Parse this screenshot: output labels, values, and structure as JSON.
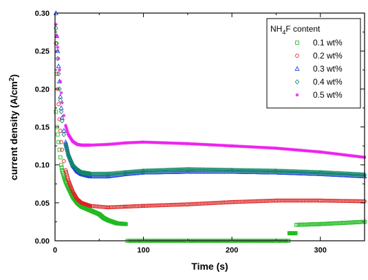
{
  "chart_data": {
    "type": "scatter",
    "title": "",
    "xlabel": "Time (s)",
    "ylabel_main": "current density (A/cm",
    "ylabel_sup": "2",
    "ylabel_close": ")",
    "xlim": [
      0,
      350
    ],
    "ylim": [
      0,
      0.3
    ],
    "x_ticks": [
      0,
      100,
      200,
      300
    ],
    "y_ticks": [
      0.0,
      0.05,
      0.1,
      0.15,
      0.2,
      0.25,
      0.3
    ],
    "y_tick_labels": [
      "0.00",
      "0.05",
      "0.10",
      "0.15",
      "0.20",
      "0.25",
      "0.30"
    ],
    "x_tick_labels": [
      "0",
      "100",
      "200",
      "300"
    ],
    "grid": false,
    "legend": {
      "position": "top-right",
      "title_prefix": "NH",
      "title_sub": "4",
      "title_suffix": "F content"
    },
    "series": [
      {
        "name": "0.1 wt%",
        "color": "#22bb22",
        "marker": "square",
        "points": [
          [
            1,
            0.17
          ],
          [
            2,
            0.15
          ],
          [
            3,
            0.14
          ],
          [
            4,
            0.13
          ],
          [
            5,
            0.12
          ],
          [
            6,
            0.11
          ],
          [
            7,
            0.1
          ],
          [
            8,
            0.093
          ],
          [
            10,
            0.085
          ],
          [
            12,
            0.078
          ],
          [
            15,
            0.07
          ],
          [
            20,
            0.058
          ],
          [
            25,
            0.05
          ],
          [
            30,
            0.045
          ],
          [
            40,
            0.04
          ],
          [
            50,
            0.035
          ],
          [
            55,
            0.03
          ],
          [
            60,
            0.027
          ],
          [
            70,
            0.023
          ],
          [
            80,
            0.022
          ],
          [
            82,
            0.0
          ],
          [
            100,
            0.0
          ],
          [
            150,
            0.0
          ],
          [
            200,
            0.0
          ],
          [
            250,
            0.0
          ],
          [
            264,
            0.0
          ],
          [
            265,
            0.01
          ],
          [
            272,
            0.01
          ],
          [
            273,
            0.021
          ],
          [
            300,
            0.022
          ],
          [
            350,
            0.025
          ]
        ]
      },
      {
        "name": "0.2 wt%",
        "color": "#dd2222",
        "marker": "circle",
        "points": [
          [
            1,
            0.26
          ],
          [
            2,
            0.22
          ],
          [
            3,
            0.2
          ],
          [
            4,
            0.18
          ],
          [
            5,
            0.16
          ],
          [
            6,
            0.145
          ],
          [
            7,
            0.13
          ],
          [
            8,
            0.12
          ],
          [
            10,
            0.105
          ],
          [
            12,
            0.093
          ],
          [
            15,
            0.08
          ],
          [
            20,
            0.065
          ],
          [
            25,
            0.055
          ],
          [
            30,
            0.05
          ],
          [
            40,
            0.046
          ],
          [
            60,
            0.044
          ],
          [
            80,
            0.045
          ],
          [
            100,
            0.046
          ],
          [
            150,
            0.048
          ],
          [
            200,
            0.051
          ],
          [
            250,
            0.053
          ],
          [
            300,
            0.053
          ],
          [
            350,
            0.052
          ]
        ]
      },
      {
        "name": "0.3 wt%",
        "color": "#2244dd",
        "marker": "triangle",
        "points": [
          [
            1,
            0.3
          ],
          [
            2,
            0.27
          ],
          [
            3,
            0.25
          ],
          [
            4,
            0.23
          ],
          [
            5,
            0.21
          ],
          [
            6,
            0.19
          ],
          [
            7,
            0.175
          ],
          [
            8,
            0.162
          ],
          [
            10,
            0.145
          ],
          [
            12,
            0.13
          ],
          [
            15,
            0.115
          ],
          [
            20,
            0.1
          ],
          [
            25,
            0.092
          ],
          [
            30,
            0.088
          ],
          [
            40,
            0.085
          ],
          [
            60,
            0.085
          ],
          [
            80,
            0.088
          ],
          [
            100,
            0.09
          ],
          [
            150,
            0.091
          ],
          [
            200,
            0.091
          ],
          [
            250,
            0.09
          ],
          [
            300,
            0.088
          ],
          [
            350,
            0.085
          ]
        ]
      },
      {
        "name": "0.4 wt%",
        "color": "#118866",
        "marker": "diamond",
        "points": [
          [
            1,
            0.28
          ],
          [
            2,
            0.26
          ],
          [
            3,
            0.24
          ],
          [
            4,
            0.22
          ],
          [
            5,
            0.2
          ],
          [
            6,
            0.185
          ],
          [
            7,
            0.17
          ],
          [
            8,
            0.158
          ],
          [
            10,
            0.14
          ],
          [
            12,
            0.127
          ],
          [
            15,
            0.113
          ],
          [
            20,
            0.1
          ],
          [
            25,
            0.094
          ],
          [
            30,
            0.09
          ],
          [
            40,
            0.088
          ],
          [
            60,
            0.088
          ],
          [
            80,
            0.09
          ],
          [
            100,
            0.092
          ],
          [
            150,
            0.094
          ],
          [
            200,
            0.093
          ],
          [
            250,
            0.092
          ],
          [
            300,
            0.09
          ],
          [
            350,
            0.087
          ]
        ]
      },
      {
        "name": "0.5 wt%",
        "color": "#ee22ee",
        "marker": "star",
        "points": [
          [
            1,
            0.285
          ],
          [
            2,
            0.27
          ],
          [
            3,
            0.255
          ],
          [
            4,
            0.24
          ],
          [
            5,
            0.225
          ],
          [
            6,
            0.21
          ],
          [
            7,
            0.195
          ],
          [
            8,
            0.182
          ],
          [
            10,
            0.165
          ],
          [
            12,
            0.152
          ],
          [
            15,
            0.14
          ],
          [
            20,
            0.131
          ],
          [
            25,
            0.127
          ],
          [
            30,
            0.126
          ],
          [
            40,
            0.126
          ],
          [
            60,
            0.127
          ],
          [
            80,
            0.129
          ],
          [
            100,
            0.13
          ],
          [
            150,
            0.128
          ],
          [
            200,
            0.125
          ],
          [
            250,
            0.122
          ],
          [
            300,
            0.117
          ],
          [
            350,
            0.11
          ]
        ]
      }
    ]
  }
}
